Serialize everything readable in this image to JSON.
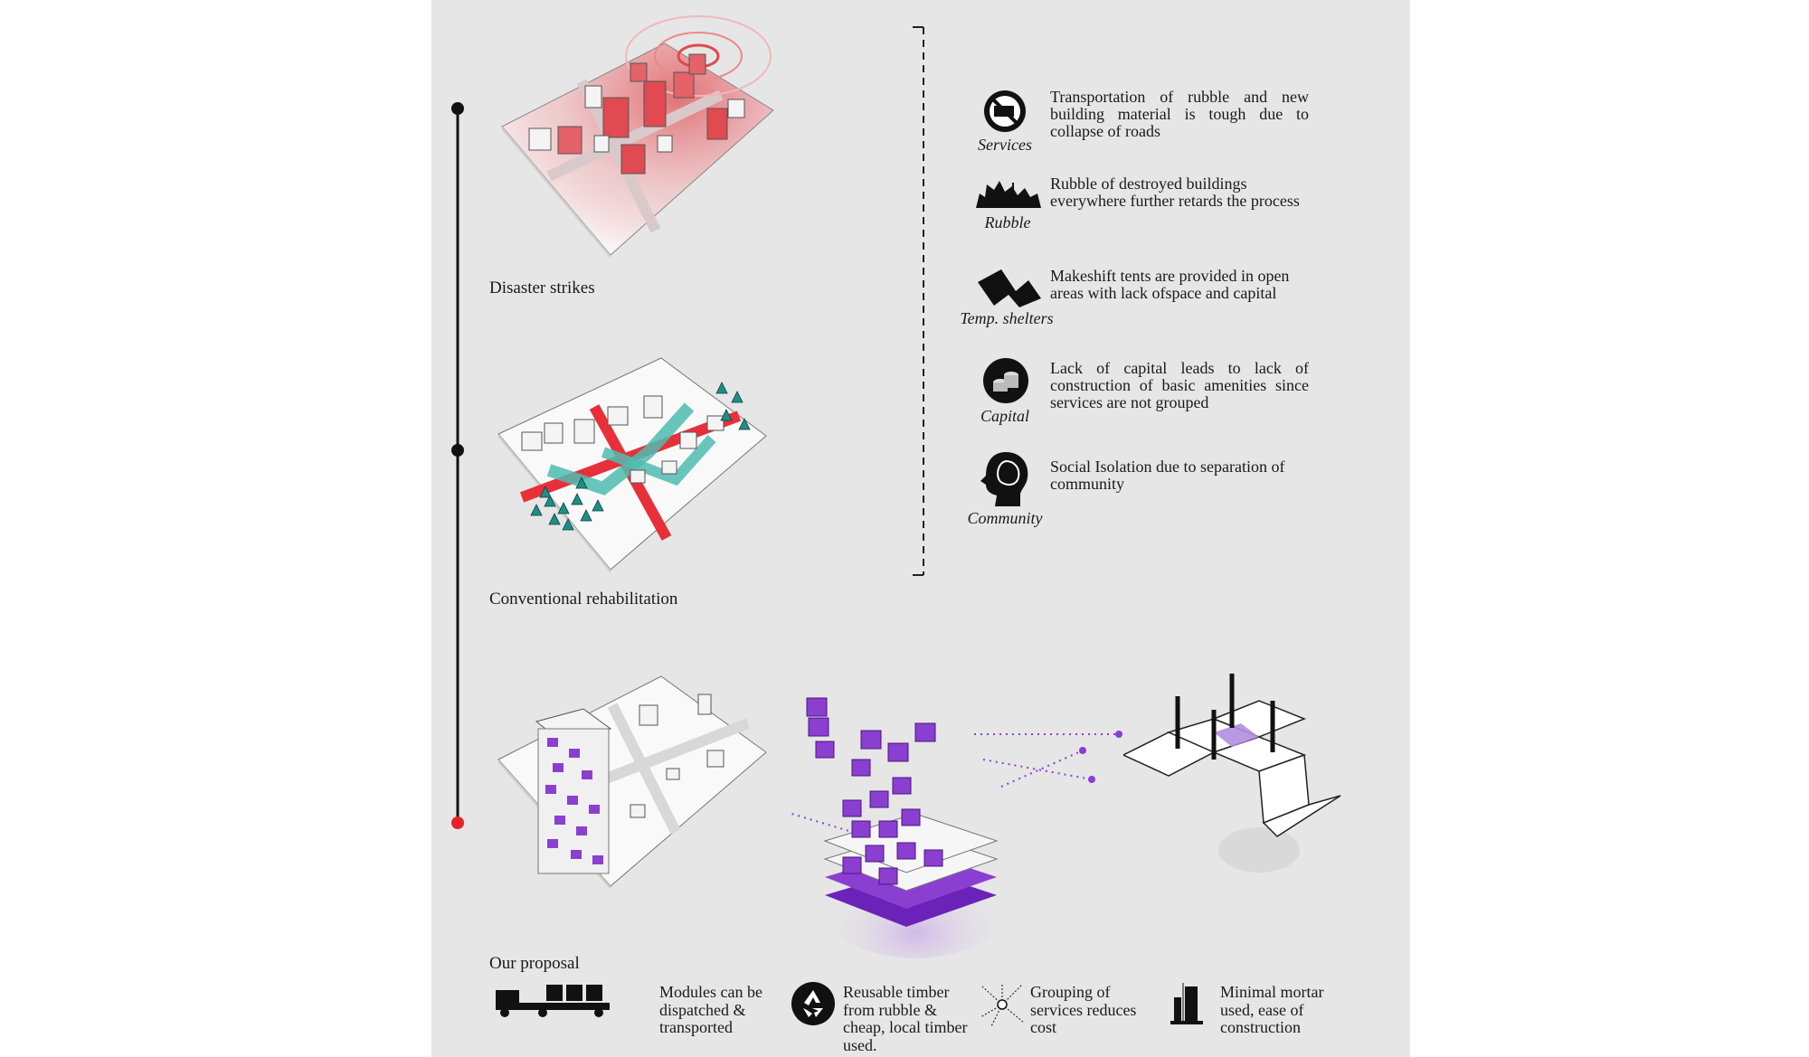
{
  "stages": [
    {
      "label": "Disaster strikes",
      "dot_color": "#111111"
    },
    {
      "label": "Conventional rehabilitation",
      "dot_color": "#111111"
    },
    {
      "label": "Our proposal",
      "dot_color": "#e8202a"
    }
  ],
  "problems": [
    {
      "caption": "Services",
      "icon": "no-truck-icon",
      "text": "Transportation of rubble and new building material is tough due to collapse of roads"
    },
    {
      "caption": "Rubble",
      "icon": "rubble-icon",
      "text": "Rubble of destroyed buildings everywhere further retards the process"
    },
    {
      "caption": "Temp. shelters",
      "icon": "tent-icon",
      "text": "Makeshift tents are provided in open areas with lack ofspace and capital"
    },
    {
      "caption": "Capital",
      "icon": "coins-icon",
      "text": "Lack of capital leads to lack of construction of basic amenities since services are not grouped"
    },
    {
      "caption": "Community",
      "icon": "head-icon",
      "text": "Social Isolation due to separation of community"
    }
  ],
  "benefits": [
    {
      "icon": "truck-icon",
      "text": "Modules can be dispatched & transported"
    },
    {
      "icon": "recycle-icon",
      "text": "Reusable timber from rubble & cheap, local timber used."
    },
    {
      "icon": "network-icon",
      "text": "Grouping of services reduces cost"
    },
    {
      "icon": "building-icon",
      "text": "Minimal mortar used, ease of construction"
    }
  ],
  "colors": {
    "background": "#e6e6e6",
    "disaster_red": "#e04a50",
    "road_red": "#e8303a",
    "teal": "#4fbcb2",
    "module_purple": "#8a3fd1",
    "timeline": "#111111"
  }
}
